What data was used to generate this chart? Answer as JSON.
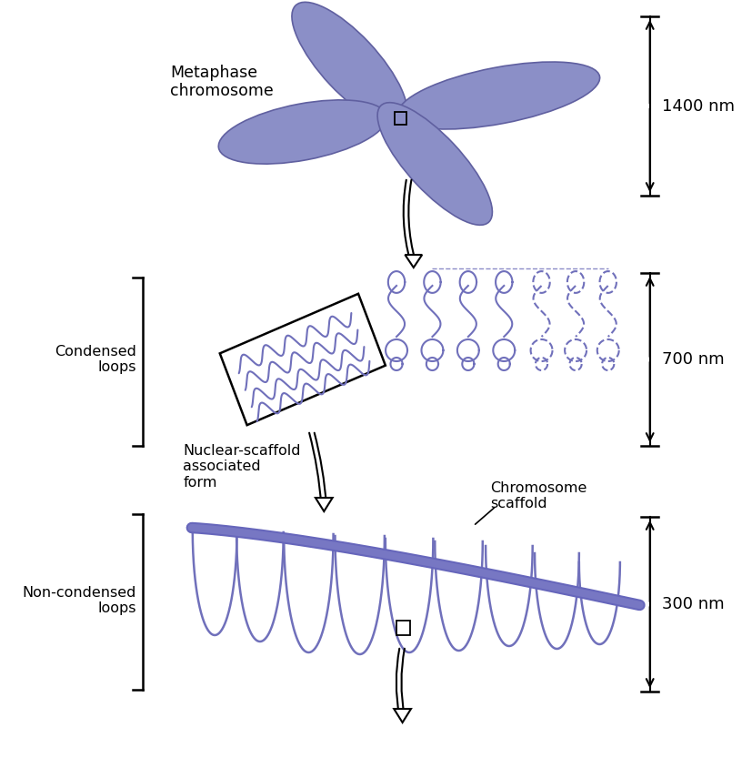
{
  "background_color": "#ffffff",
  "chromosome_color": "#8b8fc7",
  "loop_color": "#7070bb",
  "scaffold_color": "#6666bb",
  "text_color": "#000000",
  "labels": {
    "metaphase": "Metaphase\nchromosome",
    "condensed": "Condensed\nloops",
    "non_condensed": "Non-condensed\nloops",
    "nuclear_scaffold": "Nuclear-scaffold\nassociated\nform",
    "chromosome_scaffold": "Chromosome\nscaffold",
    "nm1400": "1400 nm",
    "nm700": "700 nm",
    "nm300": "300 nm"
  }
}
